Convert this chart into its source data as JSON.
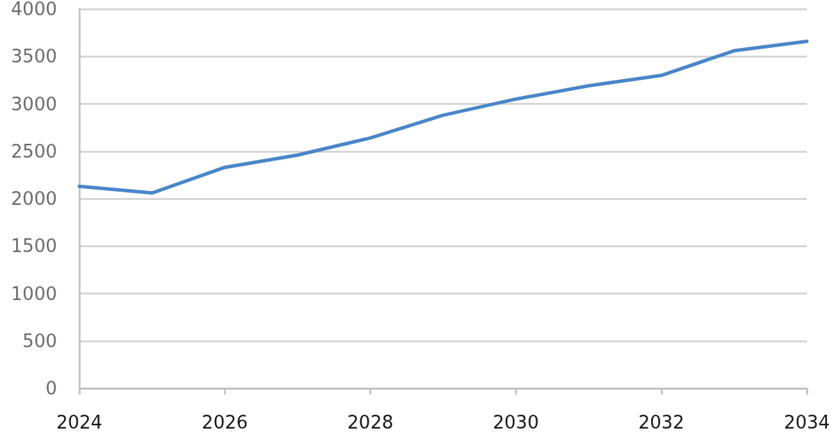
{
  "chart_data": {
    "type": "line",
    "x": [
      2024,
      2025,
      2026,
      2027,
      2028,
      2029,
      2030,
      2031,
      2032,
      2033,
      2034
    ],
    "series": [
      {
        "color": "#4a86c8",
        "values": [
          2130,
          2060,
          2330,
          2460,
          2640,
          2880,
          3050,
          3190,
          3300,
          3560,
          3660
        ]
      }
    ],
    "xlim": [
      2024,
      2034
    ],
    "xticks": [
      2024,
      2026,
      2028,
      2030,
      2032,
      2034
    ],
    "ylim": [
      0,
      4000
    ],
    "yticks": [
      0,
      500,
      1000,
      1500,
      2000,
      2500,
      3000,
      3500,
      4000
    ],
    "grid": "y",
    "marker": "none",
    "line_style": "solid"
  }
}
